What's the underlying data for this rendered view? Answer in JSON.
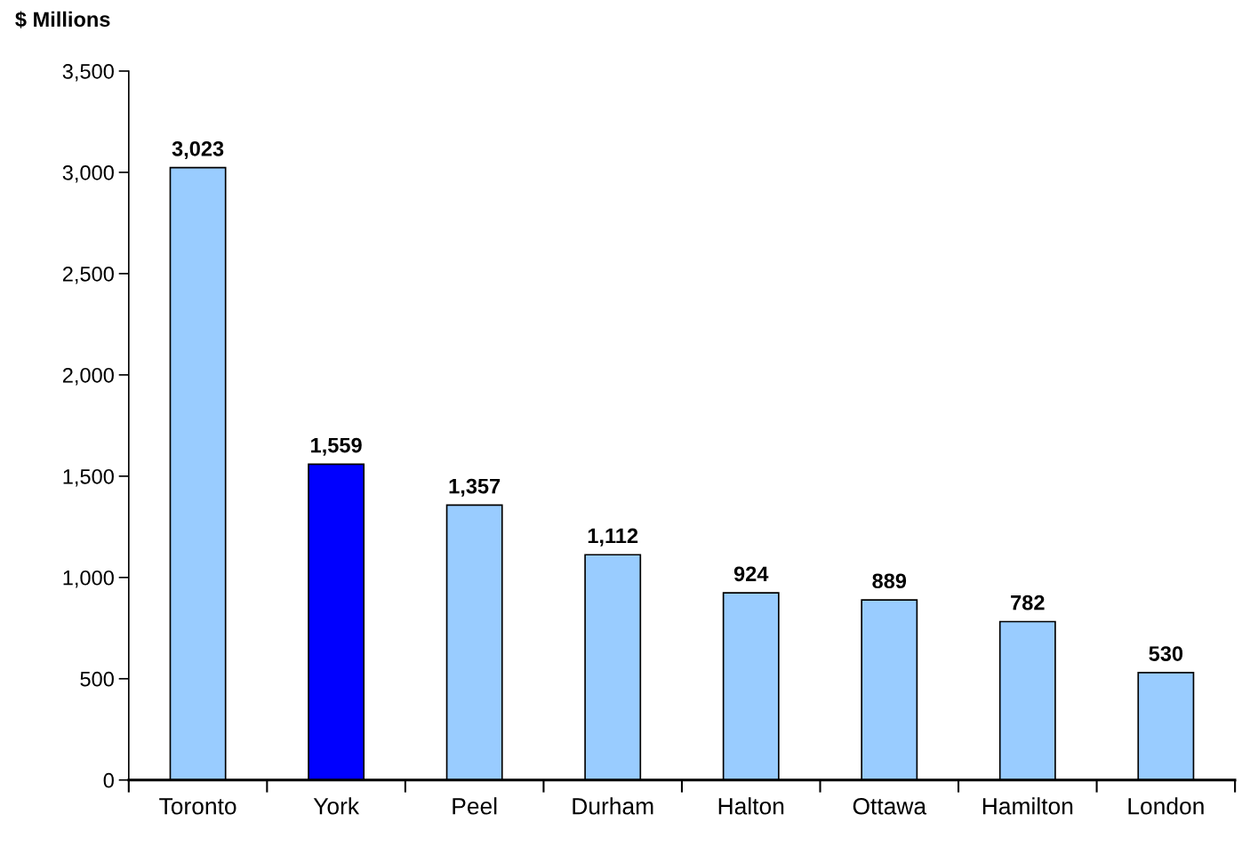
{
  "chart_data": {
    "type": "bar",
    "ylabel": "$ Millions",
    "categories": [
      "Toronto",
      "York",
      "Peel",
      "Durham",
      "Halton",
      "Ottawa",
      "Hamilton",
      "London"
    ],
    "values": [
      3023,
      1559,
      1357,
      1112,
      924,
      889,
      782,
      530
    ],
    "value_labels": [
      "3,023",
      "1,559",
      "1,357",
      "1,112",
      "924",
      "889",
      "782",
      "530"
    ],
    "colors": [
      "#99ccff",
      "#0000ff",
      "#99ccff",
      "#99ccff",
      "#99ccff",
      "#99ccff",
      "#99ccff",
      "#99ccff"
    ],
    "ylim": [
      0,
      3500
    ],
    "yticks": [
      {
        "value": 0,
        "label": "0"
      },
      {
        "value": 500,
        "label": "500"
      },
      {
        "value": 1000,
        "label": "1,000"
      },
      {
        "value": 1500,
        "label": "1,500"
      },
      {
        "value": 2000,
        "label": "2,000"
      },
      {
        "value": 2500,
        "label": "2,500"
      },
      {
        "value": 3000,
        "label": "3,000"
      },
      {
        "value": 3500,
        "label": "3,500"
      }
    ],
    "grid": false,
    "legend": false
  }
}
